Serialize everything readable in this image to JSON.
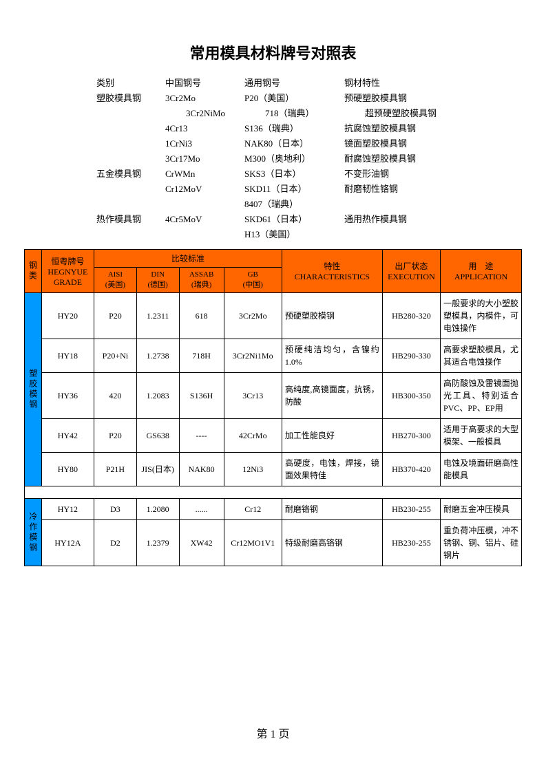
{
  "title": "常用模具材料牌号对照表",
  "intro": {
    "header": {
      "c1": "类别",
      "c2": "中国钢号",
      "c3": "通用钢号",
      "c4": "钢材特性"
    },
    "rows": [
      {
        "c1": "塑胶模具钢",
        "c2": "3Cr2Mo",
        "c3": "P20（美国）",
        "c4": "预硬塑胶模具钢"
      },
      {
        "c1": "",
        "c2": "3Cr2NiMo",
        "c3": "718（瑞典）",
        "c4": "超预硬塑胶模具钢",
        "indent": true
      },
      {
        "c1": "",
        "c2": "4Cr13",
        "c3": "S136（瑞典）",
        "c4": "抗腐蚀塑胶模具钢"
      },
      {
        "c1": "",
        "c2": "1CrNi3",
        "c3": "NAK80（日本）",
        "c4": "镜面塑胶模具钢"
      },
      {
        "c1": "",
        "c2": "3Cr17Mo",
        "c3": "M300（奥地利）",
        "c4": "耐腐蚀塑胶模具钢"
      },
      {
        "c1": "五金模具钢",
        "c2": "CrWMn",
        "c3": "SKS3（日本）",
        "c4": "不变形油钢"
      },
      {
        "c1": "",
        "c2": "Cr12MoV",
        "c3": "SKD11（日本）",
        "c4": "耐磨韧性铬钢"
      },
      {
        "c1": "",
        "c2": "",
        "c3": "8407（瑞典）",
        "c4": ""
      },
      {
        "c1": "热作模具钢",
        "c2": "4Cr5MoV",
        "c3": "SKD61（日本）",
        "c4": "通用热作模具钢"
      },
      {
        "c1": "",
        "c2": "",
        "c3": "H13（美国）",
        "c4": ""
      }
    ]
  },
  "table": {
    "header": {
      "cat": "钢类",
      "grade": "恒粤牌号\nHEGNYUE GRADE",
      "compare": "比较标准",
      "aisi": "AISI\n(美国)",
      "din": "DIN\n(德国)",
      "assab": "ASSAB\n(瑞典)",
      "gb": "GB\n(中国)",
      "char": "特性\nCHARACTERISTICS",
      "exec": "出厂状态\nEXECUTION",
      "app": "用　途\nAPPLICATION"
    },
    "cat1": "塑胶模钢",
    "cat2": "冷作模钢",
    "rows1": [
      {
        "grade": "HY20",
        "aisi": "P20",
        "din": "1.2311",
        "assab": "618",
        "gb": "3Cr2Mo",
        "char": "预硬塑胶模钢",
        "exec": "HB280-320",
        "app": "一般要求的大小塑胶塑模具，内模件，可电蚀操作"
      },
      {
        "grade": "HY18",
        "aisi": "P20+Ni",
        "din": "1.2738",
        "assab": "718H",
        "gb": "3Cr2Ni1Mo",
        "char": "预硬纯洁均匀，含镍约 1.0%",
        "exec": "HB290-330",
        "app": "高要求塑胶模具，尤其适合电蚀操作"
      },
      {
        "grade": "HY36",
        "aisi": "420",
        "din": "1.2083",
        "assab": "S136H",
        "gb": "3Cr13",
        "char": "高纯度,高镜面度，抗锈，防酸",
        "exec": "HB300-350",
        "app": "高防酸蚀及雷镜面抛光工具、特别适合PVC、PP、EP用"
      },
      {
        "grade": "HY42",
        "aisi": "P20",
        "din": "GS638",
        "assab": "----",
        "gb": "42CrMo",
        "char": "加工性能良好",
        "exec": "HB270-300",
        "app": "适用于高要求的大型模架、一般模具"
      },
      {
        "grade": "HY80",
        "aisi": "P21H",
        "din": "JIS(日本)",
        "assab": "NAK80",
        "gb": "12Ni3",
        "char": "高硬度，电蚀，焊接，镜面效果特佳",
        "exec": "HB370-420",
        "app": "电蚀及境面研磨高性能模具"
      }
    ],
    "rows2": [
      {
        "grade": "HY12",
        "aisi": "D3",
        "din": "1.2080",
        "assab": "......",
        "gb": "Cr12",
        "char": "耐磨铬钢",
        "exec": "HB230-255",
        "app": "耐磨五金冲压模具"
      },
      {
        "grade": "HY12A",
        "aisi": "D2",
        "din": "1.2379",
        "assab": "XW42",
        "gb": "Cr12MO1V1",
        "char": "特级耐磨高铬钢",
        "exec": "HB230-255",
        "app": "重负荷冲压模，冲不锈钢、铜、铝片、硅钢片"
      }
    ]
  },
  "pagenum": "第 1 页"
}
